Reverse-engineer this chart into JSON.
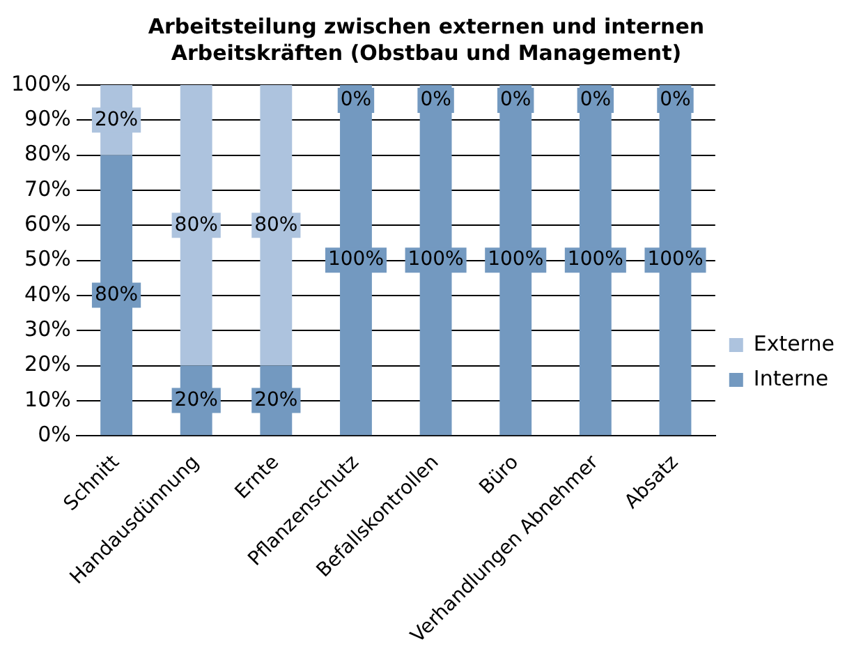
{
  "chart_data": {
    "type": "bar",
    "title": "Arbeitsteilung zwischen externen und internen Arbeitskräften (Obstbau und Management)",
    "categories": [
      "Schnitt",
      "Handausdünnung",
      "Ernte",
      "Pflanzenschutz",
      "Befallskontrollen",
      "Büro",
      "Verhandlungen Abnehmer",
      "Absatz"
    ],
    "stacked": true,
    "series": [
      {
        "name": "Interne",
        "color": "#7399c0",
        "values": [
          80,
          20,
          20,
          100,
          100,
          100,
          100,
          100
        ],
        "value_labels": [
          "80%",
          "20%",
          "20%",
          "100%",
          "100%",
          "100%",
          "100%",
          "100%"
        ]
      },
      {
        "name": "Externe",
        "color": "#adc3de",
        "values": [
          20,
          80,
          80,
          0,
          0,
          0,
          0,
          0
        ],
        "value_labels": [
          "20%",
          "80%",
          "80%",
          "0%",
          "0%",
          "0%",
          "0%",
          "0%"
        ]
      }
    ],
    "ylim": [
      0,
      100
    ],
    "yticks": [
      {
        "value": 0,
        "label": "0%"
      },
      {
        "value": 10,
        "label": "10%"
      },
      {
        "value": 20,
        "label": "20%"
      },
      {
        "value": 30,
        "label": "30%"
      },
      {
        "value": 40,
        "label": "40%"
      },
      {
        "value": 50,
        "label": "50%"
      },
      {
        "value": 60,
        "label": "60%"
      },
      {
        "value": 70,
        "label": "70%"
      },
      {
        "value": 80,
        "label": "80%"
      },
      {
        "value": 90,
        "label": "90%"
      },
      {
        "value": 100,
        "label": "100%"
      }
    ],
    "grid": "y",
    "legend": "right"
  }
}
